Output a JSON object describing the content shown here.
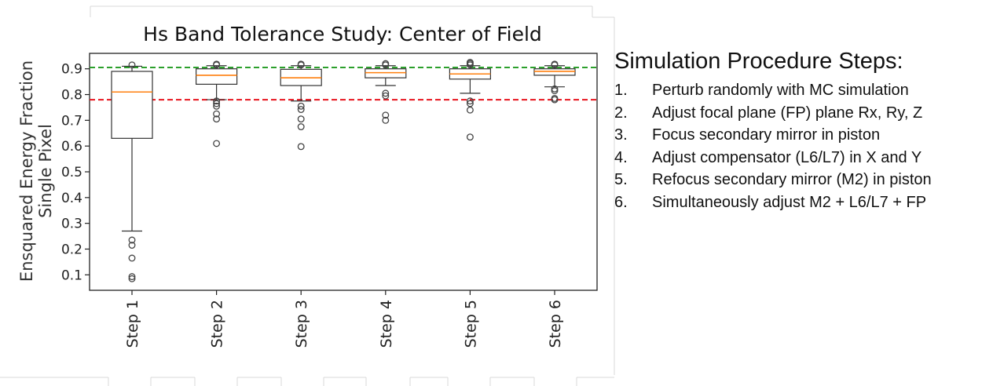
{
  "chart_data": {
    "type": "box",
    "title": "Hs Band Tolerance Study: Center of Field",
    "ylabel_line1": "Ensquared Energy Fraction",
    "ylabel_line2": "Single Pixel",
    "ylim": [
      0.04,
      0.96
    ],
    "yticks": [
      0.1,
      0.2,
      0.3,
      0.4,
      0.5,
      0.6,
      0.7,
      0.8,
      0.9
    ],
    "categories": [
      "Step 1",
      "Step 2",
      "Step 3",
      "Step 4",
      "Step 5",
      "Step 6"
    ],
    "reference_lines": [
      {
        "value": 0.905,
        "color": "#2ca02c",
        "style": "dashed"
      },
      {
        "value": 0.78,
        "color": "#e8141e",
        "style": "dashed"
      }
    ],
    "colors": {
      "median": "#ff7f0e",
      "box": "#333333",
      "flier": "#444444"
    },
    "boxes": [
      {
        "category": "Step 1",
        "whislo": 0.27,
        "q1": 0.63,
        "med": 0.81,
        "q3": 0.89,
        "whishi": 0.91,
        "fliers": [
          0.235,
          0.215,
          0.165,
          0.093,
          0.085,
          0.915
        ]
      },
      {
        "category": "Step 2",
        "whislo": 0.78,
        "q1": 0.84,
        "med": 0.875,
        "q3": 0.9,
        "whishi": 0.912,
        "fliers": [
          0.775,
          0.765,
          0.755,
          0.725,
          0.705,
          0.61,
          0.915,
          0.918
        ]
      },
      {
        "category": "Step 3",
        "whislo": 0.775,
        "q1": 0.835,
        "med": 0.865,
        "q3": 0.898,
        "whishi": 0.912,
        "fliers": [
          0.755,
          0.742,
          0.705,
          0.675,
          0.598,
          0.915,
          0.918
        ]
      },
      {
        "category": "Step 4",
        "whislo": 0.835,
        "q1": 0.865,
        "med": 0.885,
        "q3": 0.9,
        "whishi": 0.912,
        "fliers": [
          0.805,
          0.795,
          0.72,
          0.7,
          0.915,
          0.92
        ]
      },
      {
        "category": "Step 5",
        "whislo": 0.805,
        "q1": 0.86,
        "med": 0.88,
        "q3": 0.9,
        "whishi": 0.912,
        "fliers": [
          0.775,
          0.765,
          0.74,
          0.635,
          0.915,
          0.92,
          0.925
        ]
      },
      {
        "category": "Step 6",
        "whislo": 0.83,
        "q1": 0.875,
        "med": 0.89,
        "q3": 0.9,
        "whishi": 0.912,
        "fliers": [
          0.822,
          0.815,
          0.785,
          0.78,
          0.915,
          0.918
        ]
      }
    ]
  },
  "procedure": {
    "title": "Simulation Procedure Steps:",
    "steps": [
      {
        "num": "1.",
        "text": "Perturb randomly with MC simulation"
      },
      {
        "num": "2.",
        "text": "Adjust focal plane (FP) plane Rx, Ry, Z"
      },
      {
        "num": "3.",
        "text": "Focus secondary mirror in piston"
      },
      {
        "num": "4.",
        "text": "Adjust compensator (L6/L7) in X and Y"
      },
      {
        "num": "5.",
        "text": "Refocus secondary mirror (M2) in piston"
      },
      {
        "num": "6.",
        "text": "Simultaneously adjust M2 + L6/L7 + FP"
      }
    ]
  }
}
